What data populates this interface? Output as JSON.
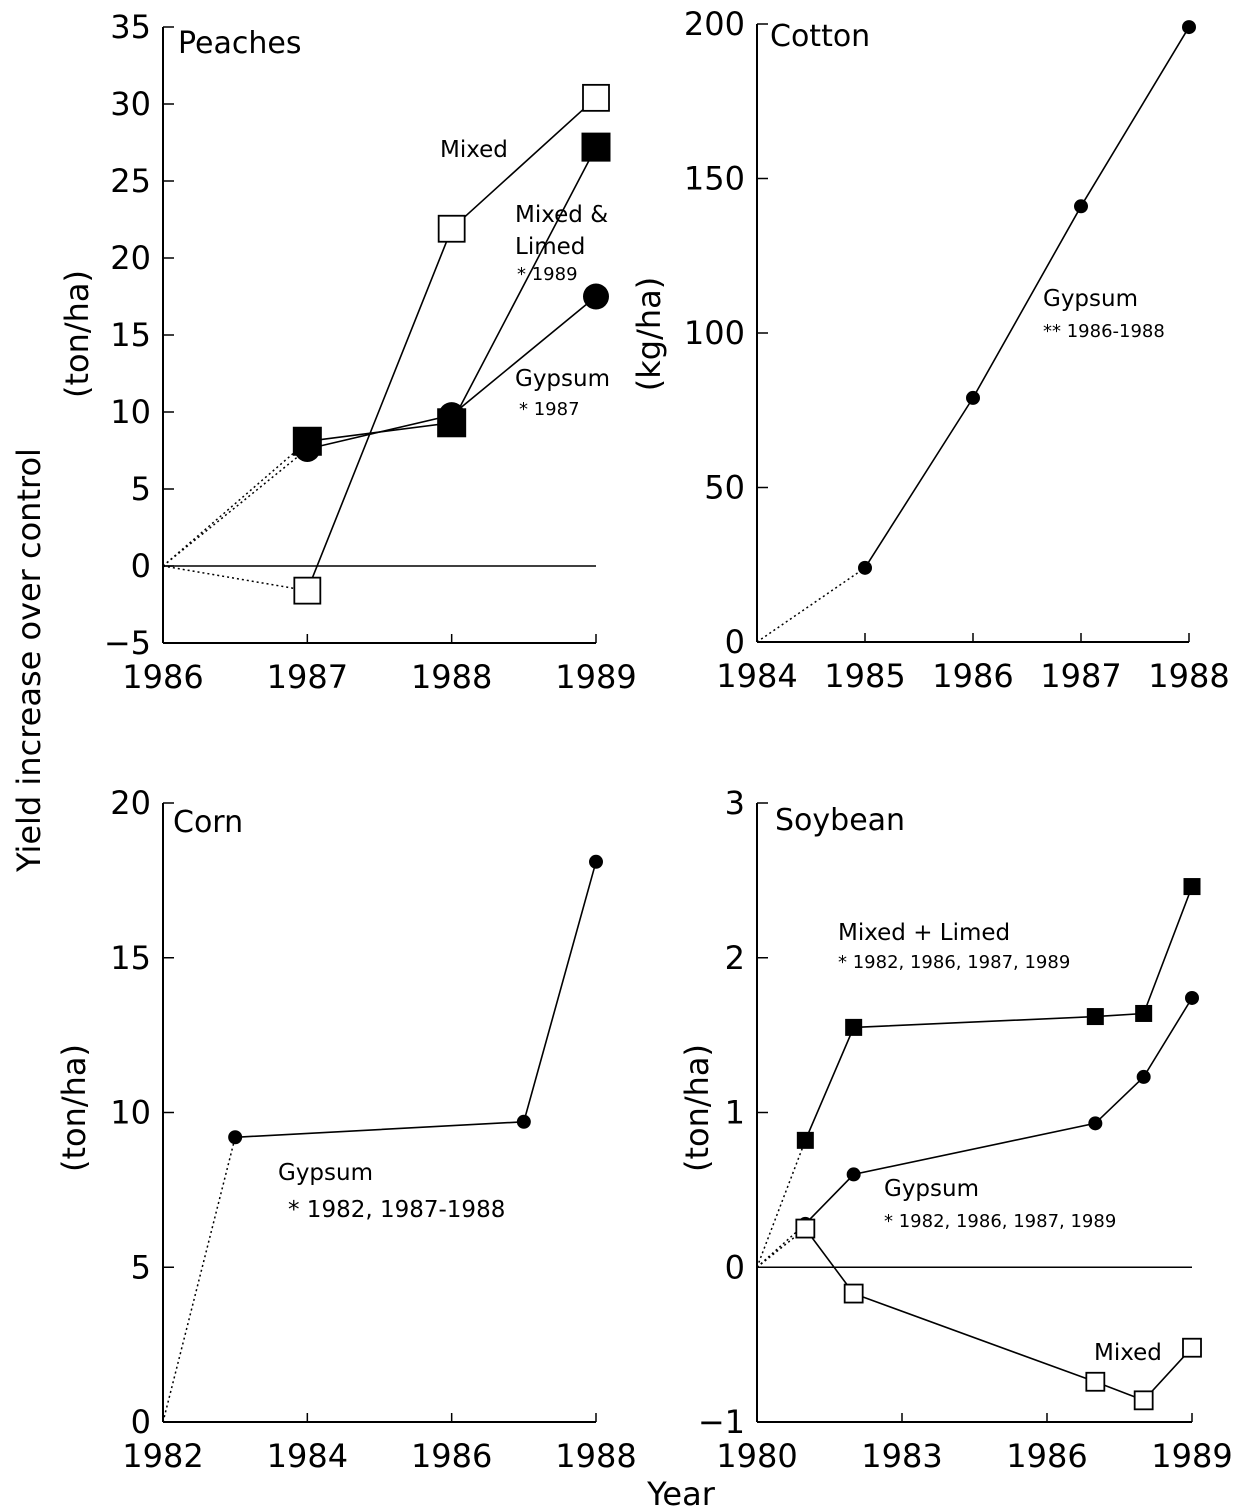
{
  "figure": {
    "ylabel": "Yield increase over control",
    "xlabel": "Year"
  },
  "chart_data": [
    {
      "type": "line",
      "title": "Peaches",
      "unit_label": "(ton/ha)",
      "xlim": [
        1986,
        1989
      ],
      "ylim": [
        -5,
        35
      ],
      "xticks": [
        "1986",
        "1987",
        "1988",
        "1989"
      ],
      "yticks": [
        "-5",
        "0",
        "5",
        "10",
        "15",
        "20",
        "25",
        "30",
        "35"
      ],
      "zero_line": true,
      "series": [
        {
          "name": "Mixed",
          "marker": "open-square",
          "x": [
            1986,
            1987,
            1988,
            1989
          ],
          "y": [
            0,
            -1.6,
            21.9,
            30.4
          ]
        },
        {
          "name": "Mixed & Limed",
          "marker": "filled-square",
          "x": [
            1986,
            1987,
            1988,
            1989
          ],
          "y": [
            0,
            8.1,
            9.3,
            27.2
          ]
        },
        {
          "name": "Gypsum",
          "marker": "filled-circle",
          "x": [
            1986,
            1987,
            1988,
            1989
          ],
          "y": [
            0,
            7.6,
            9.8,
            17.5
          ]
        }
      ],
      "annotations": [
        {
          "text": "Mixed"
        },
        {
          "text": "Mixed &"
        },
        {
          "text": "Limed"
        },
        {
          "text": "* 1989"
        },
        {
          "text": "Gypsum"
        },
        {
          "text": "* 1987"
        }
      ]
    },
    {
      "type": "line",
      "title": "Cotton",
      "unit_label": "(kg/ha)",
      "xlim": [
        1984,
        1988
      ],
      "ylim": [
        0,
        200
      ],
      "xticks": [
        "1984",
        "1985",
        "1986",
        "1987",
        "1988"
      ],
      "yticks": [
        "0",
        "50",
        "100",
        "150",
        "200"
      ],
      "zero_line": false,
      "series": [
        {
          "name": "Gypsum",
          "marker": "small-filled-circle",
          "x": [
            1984,
            1985,
            1986,
            1987,
            1988
          ],
          "y": [
            0,
            24,
            79,
            141,
            199
          ]
        }
      ],
      "annotations": [
        {
          "text": "Gypsum"
        },
        {
          "text": "** 1986-1988"
        }
      ]
    },
    {
      "type": "line",
      "title": "Corn",
      "unit_label": "(ton/ha)",
      "xlim": [
        1982,
        1988
      ],
      "ylim": [
        0,
        20
      ],
      "xticks": [
        "1982",
        "1984",
        "1986",
        "1988"
      ],
      "yticks": [
        "0",
        "5",
        "10",
        "15",
        "20"
      ],
      "zero_line": false,
      "series": [
        {
          "name": "Gypsum",
          "marker": "small-filled-circle",
          "x": [
            1982,
            1983,
            1987,
            1988
          ],
          "y": [
            0,
            9.2,
            9.7,
            18.1
          ]
        }
      ],
      "annotations": [
        {
          "text": "Gypsum"
        },
        {
          "text": "* 1982, 1987-1988"
        }
      ]
    },
    {
      "type": "line",
      "title": "Soybean",
      "unit_label": "(ton/ha)",
      "xlim": [
        1980,
        1989
      ],
      "ylim": [
        -1,
        3
      ],
      "xticks": [
        "1980",
        "1983",
        "1986",
        "1989"
      ],
      "yticks": [
        "-1",
        "0",
        "1",
        "2",
        "3"
      ],
      "zero_line": true,
      "series": [
        {
          "name": "Mixed + Limed",
          "marker": "small-filled-square",
          "x": [
            1980,
            1981,
            1982,
            1987,
            1988,
            1989
          ],
          "y": [
            0,
            0.82,
            1.55,
            1.62,
            1.64,
            2.46
          ]
        },
        {
          "name": "Gypsum",
          "marker": "small-filled-circle",
          "x": [
            1980,
            1981,
            1982,
            1987,
            1988,
            1989
          ],
          "y": [
            0,
            0.28,
            0.6,
            0.93,
            1.23,
            1.74
          ]
        },
        {
          "name": "Mixed",
          "marker": "small-open-square",
          "x": [
            1980,
            1981,
            1982,
            1987,
            1988,
            1989
          ],
          "y": [
            0,
            0.25,
            -0.17,
            -0.74,
            -0.86,
            -0.52
          ]
        }
      ],
      "annotations": [
        {
          "text": "Mixed + Limed"
        },
        {
          "text": "* 1982, 1986, 1987, 1989"
        },
        {
          "text": "Gypsum"
        },
        {
          "text": "* 1982, 1986, 1987, 1989"
        },
        {
          "text": "Mixed"
        }
      ]
    }
  ]
}
